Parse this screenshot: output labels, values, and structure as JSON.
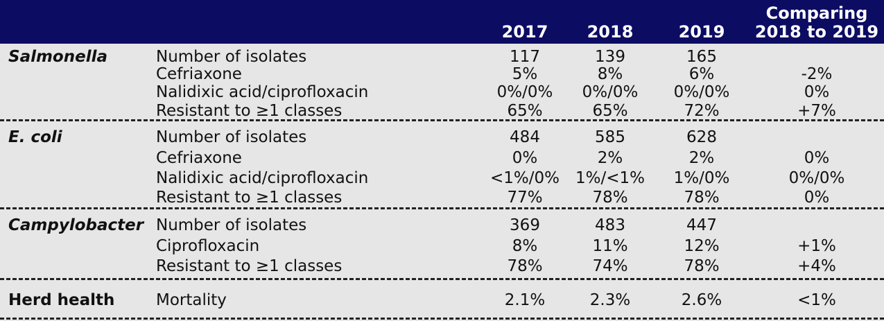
{
  "header": {
    "years": [
      "2017",
      "2018",
      "2019"
    ],
    "comparison": [
      "Comparing",
      "2018 to 2019"
    ]
  },
  "groups": [
    {
      "label": "Salmonella",
      "italic": true,
      "rows": [
        [
          "Number of isolates",
          "117",
          "139",
          "165",
          null
        ],
        [
          "Cefriaxone",
          "5%",
          "8%",
          "6%",
          "-2%"
        ],
        [
          "Nalidixic acid/ciprofloxacin",
          "0%/0%",
          "0%/0%",
          "0%/0%",
          "0%"
        ],
        [
          "Resistant to ≥1 classes",
          "65%",
          "65%",
          "72%",
          "+7%"
        ]
      ]
    },
    {
      "label": "E. coli",
      "italic": true,
      "rows": [
        [
          "Number of isolates",
          "484",
          "585",
          "628",
          null
        ],
        [
          "Cefriaxone",
          "0%",
          "2%",
          "2%",
          "0%"
        ],
        [
          "Nalidixic acid/ciprofloxacin",
          "<1%/0%",
          "1%/<1%",
          "1%/0%",
          "0%/0%"
        ],
        [
          "Resistant to ≥1 classes",
          "77%",
          "78%",
          "78%",
          "0%"
        ]
      ]
    },
    {
      "label": "Campylobacter",
      "italic": true,
      "rows": [
        [
          "Number of isolates",
          "369",
          "483",
          "447",
          null
        ],
        [
          "Ciprofloxacin",
          "8%",
          "11%",
          "12%",
          "+1%"
        ],
        [
          "Resistant to ≥1 classes",
          "78%",
          "74%",
          "78%",
          "+4%"
        ]
      ]
    },
    {
      "label": "Herd health",
      "italic": false,
      "rows": [
        [
          "Mortality",
          "2.1%",
          "2.3%",
          "2.6%",
          "<1%"
        ]
      ]
    }
  ]
}
